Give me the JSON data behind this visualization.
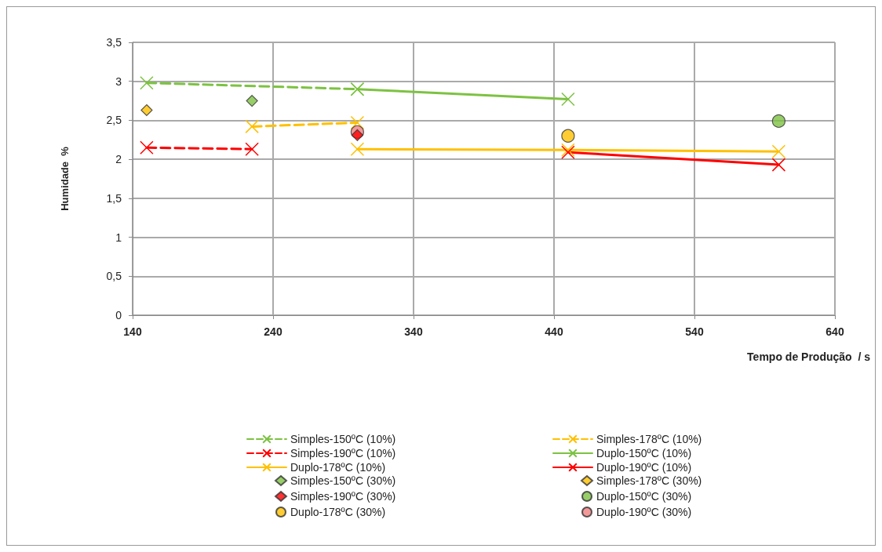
{
  "chart_data": {
    "type": "line",
    "xlabel": "Tempo de Produção  / s",
    "ylabel": "Humidade  %",
    "xlim": [
      140,
      640
    ],
    "xticks": [
      140,
      240,
      340,
      440,
      540,
      640
    ],
    "ylim": [
      0,
      3.5
    ],
    "yticks": [
      0,
      {
        "value": 0.5,
        "label": "0,5"
      },
      1,
      {
        "value": 1.5,
        "label": "1,5"
      },
      2,
      {
        "value": 2.5,
        "label": "2,5"
      },
      3,
      {
        "value": 3.5,
        "label": "3,5"
      }
    ],
    "grid": true,
    "legend": "bottom",
    "series": [
      {
        "name": "Simples-150ºC (10%)",
        "color": "#7dc242",
        "line_style": "dashed",
        "marker": "cross",
        "x": [
          150,
          300
        ],
        "values": [
          2.98,
          2.9
        ]
      },
      {
        "name": "Simples-178ºC (10%)",
        "color": "#ffc000",
        "line_style": "dashed",
        "marker": "cross",
        "x": [
          225,
          300
        ],
        "values": [
          2.42,
          2.47
        ]
      },
      {
        "name": "Simples-190ºC (10%)",
        "color": "#ff0000",
        "line_style": "dashed",
        "marker": "cross",
        "x": [
          150,
          225
        ],
        "values": [
          2.15,
          2.13
        ]
      },
      {
        "name": "Duplo-150ºC (10%)",
        "color": "#7dc242",
        "line_style": "solid",
        "marker": "cross",
        "x": [
          300,
          450
        ],
        "values": [
          2.9,
          2.77
        ]
      },
      {
        "name": "Duplo-178ºC (10%)",
        "color": "#ffc000",
        "line_style": "solid",
        "marker": "cross",
        "x": [
          300,
          450,
          600
        ],
        "values": [
          2.13,
          2.12,
          2.1
        ]
      },
      {
        "name": "Duplo-190ºC (10%)",
        "color": "#ff0000",
        "line_style": "solid",
        "marker": "cross",
        "x": [
          450,
          600
        ],
        "values": [
          2.09,
          1.93
        ]
      },
      {
        "name": "Simples-150ºC (30%)",
        "type": "scatter",
        "color": "#7dc242",
        "marker": "diamond",
        "x": [
          225
        ],
        "values": [
          2.75
        ]
      },
      {
        "name": "Simples-178ºC (30%)",
        "type": "scatter",
        "color": "#ffc000",
        "marker": "diamond",
        "x": [
          150
        ],
        "values": [
          2.63
        ]
      },
      {
        "name": "Simples-190ºC (30%)",
        "type": "scatter",
        "color": "#ff0000",
        "marker": "diamond",
        "x": [
          300
        ],
        "values": [
          2.31
        ]
      },
      {
        "name": "Duplo-150ºC (30%)",
        "type": "scatter",
        "color": "#7dc242",
        "marker": "circle",
        "x": [
          600
        ],
        "values": [
          2.49
        ]
      },
      {
        "name": "Duplo-178ºC (30%)",
        "type": "scatter",
        "color": "#ffc000",
        "marker": "circle",
        "x": [
          450
        ],
        "values": [
          2.3
        ]
      },
      {
        "name": "Duplo-190ºC (30%)",
        "type": "scatter",
        "color": "#f08080",
        "marker": "circle",
        "x": [
          300
        ],
        "values": [
          2.35
        ]
      }
    ]
  }
}
